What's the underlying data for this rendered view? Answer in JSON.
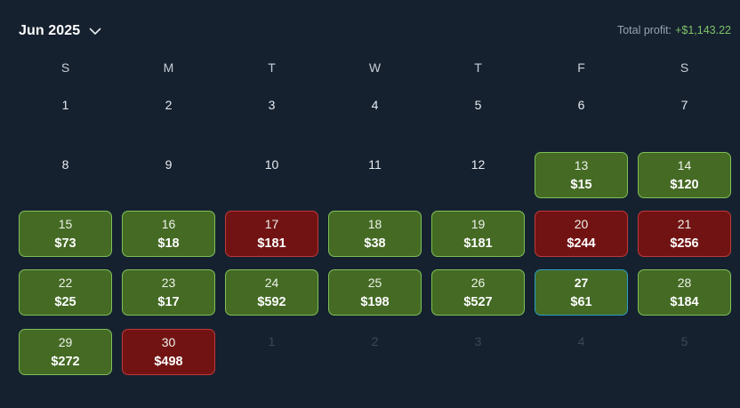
{
  "header": {
    "month_label": "Jun 2025",
    "total_label": "Total profit:",
    "total_value": "+$1,143.22"
  },
  "colors": {
    "background": "#16212f",
    "profit_cell": "#446a24",
    "loss_cell": "#721313",
    "profit_text": "#7dc46a",
    "today_border": "#2a9fc2"
  },
  "weekdays": [
    "S",
    "M",
    "T",
    "W",
    "T",
    "F",
    "S"
  ],
  "weeks": [
    [
      {
        "day": "1",
        "amount": "",
        "status": "none"
      },
      {
        "day": "2",
        "amount": "",
        "status": "none"
      },
      {
        "day": "3",
        "amount": "",
        "status": "none"
      },
      {
        "day": "4",
        "amount": "",
        "status": "none"
      },
      {
        "day": "5",
        "amount": "",
        "status": "none"
      },
      {
        "day": "6",
        "amount": "",
        "status": "none"
      },
      {
        "day": "7",
        "amount": "",
        "status": "none"
      }
    ],
    [
      {
        "day": "8",
        "amount": "",
        "status": "none"
      },
      {
        "day": "9",
        "amount": "",
        "status": "none"
      },
      {
        "day": "10",
        "amount": "",
        "status": "none"
      },
      {
        "day": "11",
        "amount": "",
        "status": "none"
      },
      {
        "day": "12",
        "amount": "",
        "status": "none"
      },
      {
        "day": "13",
        "amount": "$15",
        "status": "win"
      },
      {
        "day": "14",
        "amount": "$120",
        "status": "win"
      }
    ],
    [
      {
        "day": "15",
        "amount": "$73",
        "status": "win"
      },
      {
        "day": "16",
        "amount": "$18",
        "status": "win"
      },
      {
        "day": "17",
        "amount": "$181",
        "status": "loss"
      },
      {
        "day": "18",
        "amount": "$38",
        "status": "win"
      },
      {
        "day": "19",
        "amount": "$181",
        "status": "win"
      },
      {
        "day": "20",
        "amount": "$244",
        "status": "loss"
      },
      {
        "day": "21",
        "amount": "$256",
        "status": "loss"
      }
    ],
    [
      {
        "day": "22",
        "amount": "$25",
        "status": "win"
      },
      {
        "day": "23",
        "amount": "$17",
        "status": "win"
      },
      {
        "day": "24",
        "amount": "$592",
        "status": "win"
      },
      {
        "day": "25",
        "amount": "$198",
        "status": "win"
      },
      {
        "day": "26",
        "amount": "$527",
        "status": "win"
      },
      {
        "day": "27",
        "amount": "$61",
        "status": "today"
      },
      {
        "day": "28",
        "amount": "$184",
        "status": "win"
      }
    ],
    [
      {
        "day": "29",
        "amount": "$272",
        "status": "win"
      },
      {
        "day": "30",
        "amount": "$498",
        "status": "loss"
      },
      {
        "day": "1",
        "amount": "",
        "status": "muted"
      },
      {
        "day": "2",
        "amount": "",
        "status": "muted"
      },
      {
        "day": "3",
        "amount": "",
        "status": "muted"
      },
      {
        "day": "4",
        "amount": "",
        "status": "muted"
      },
      {
        "day": "5",
        "amount": "",
        "status": "muted"
      }
    ]
  ]
}
